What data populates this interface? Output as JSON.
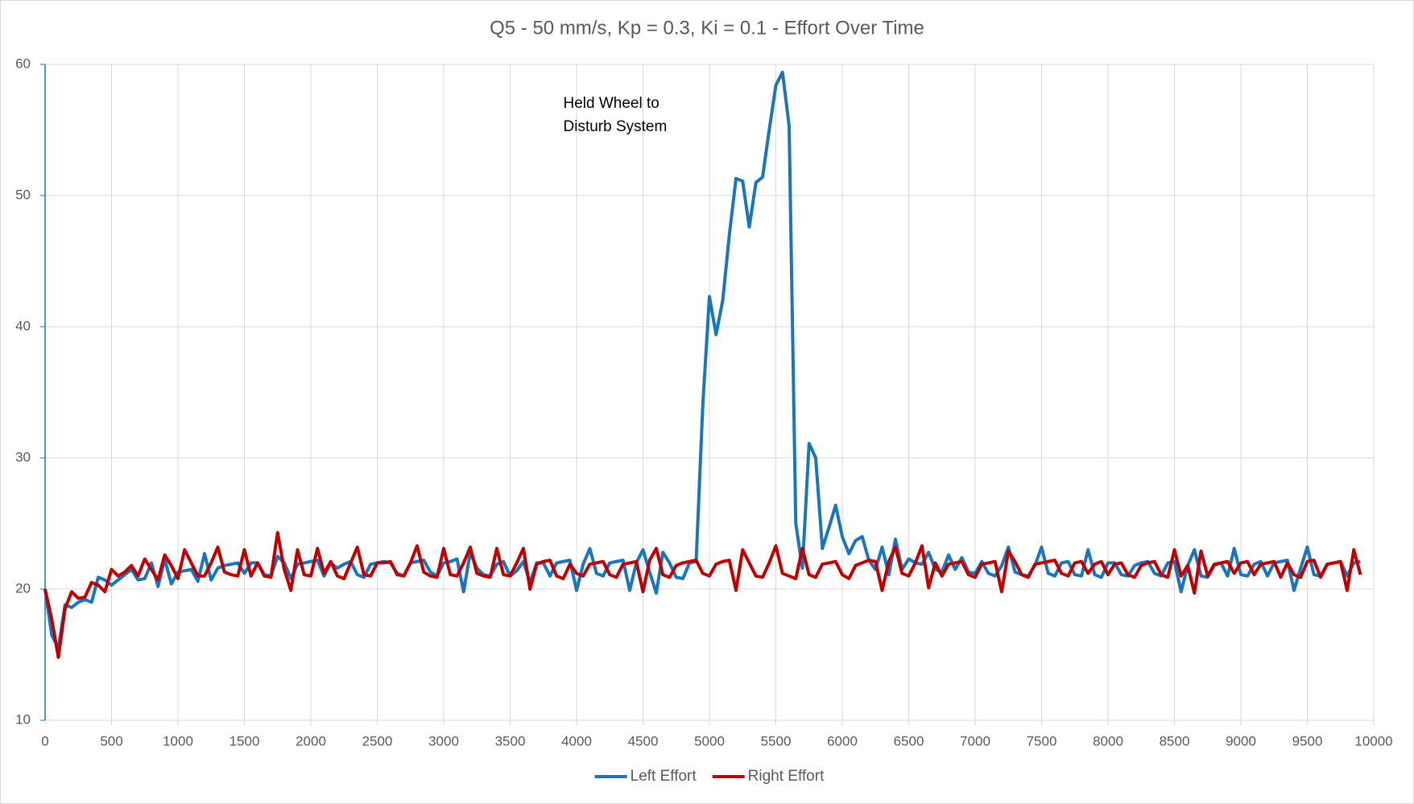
{
  "chart_data": {
    "type": "line",
    "title": "Q5 - 50 mm/s, Kp = 0.3, Ki = 0.1 - Effort Over Time",
    "annotation": [
      "Held Wheel to",
      "Disturb System"
    ],
    "annotation_at": [
      3900,
      57
    ],
    "x": [
      0,
      50,
      100,
      150,
      200,
      250,
      300,
      350,
      400,
      450,
      500,
      550,
      600,
      650,
      700,
      750,
      800,
      850,
      900,
      950,
      1000,
      1050,
      1100,
      1150,
      1200,
      1250,
      1300,
      1350,
      1400,
      1450,
      1500,
      1550,
      1600,
      1650,
      1700,
      1750,
      1800,
      1850,
      1900,
      1950,
      2000,
      2050,
      2100,
      2150,
      2200,
      2250,
      2300,
      2350,
      2400,
      2450,
      2500,
      2550,
      2600,
      2650,
      2700,
      2750,
      2800,
      2850,
      2900,
      2950,
      3000,
      3050,
      3100,
      3150,
      3200,
      3250,
      3300,
      3350,
      3400,
      3450,
      3500,
      3550,
      3600,
      3650,
      3700,
      3750,
      3800,
      3850,
      3900,
      3950,
      4000,
      4050,
      4100,
      4150,
      4200,
      4250,
      4300,
      4350,
      4400,
      4450,
      4500,
      4550,
      4600,
      4650,
      4700,
      4750,
      4800,
      4850,
      4900,
      4950,
      5000,
      5050,
      5100,
      5150,
      5200,
      5250,
      5300,
      5350,
      5400,
      5450,
      5500,
      5550,
      5600,
      5650,
      5700,
      5750,
      5800,
      5850,
      5900,
      5950,
      6000,
      6050,
      6100,
      6150,
      6200,
      6250,
      6300,
      6350,
      6400,
      6450,
      6500,
      6550,
      6600,
      6650,
      6700,
      6750,
      6800,
      6850,
      6900,
      6950,
      7000,
      7050,
      7100,
      7150,
      7200,
      7250,
      7300,
      7350,
      7400,
      7450,
      7500,
      7550,
      7600,
      7650,
      7700,
      7750,
      7800,
      7850,
      7900,
      7950,
      8000,
      8050,
      8100,
      8150,
      8200,
      8250,
      8300,
      8350,
      8400,
      8450,
      8500,
      8550,
      8600,
      8650,
      8700,
      8750,
      8800,
      8850,
      8900,
      8950,
      9000,
      9050,
      9100,
      9150,
      9200,
      9250,
      9300,
      9350,
      9400,
      9450,
      9500,
      9550,
      9600,
      9650,
      9700,
      9750,
      9800,
      9850,
      9900
    ],
    "series": [
      {
        "name": "Left Effort",
        "color": "#1b75bc",
        "values": [
          20,
          16.5,
          15.5,
          18.8,
          18.6,
          19,
          19.2,
          19,
          20.9,
          20.7,
          20.3,
          20.7,
          21.1,
          21.5,
          20.7,
          20.8,
          22,
          20.2,
          22.3,
          20.4,
          21.3,
          21.4,
          21.5,
          20.6,
          22.7,
          20.7,
          21.6,
          21.8,
          21.9,
          22,
          21.2,
          22,
          22,
          21.1,
          21,
          22.5,
          22,
          20.8,
          21.9,
          22,
          22.1,
          22.2,
          21,
          22,
          21.6,
          21.9,
          22.1,
          21.1,
          20.9,
          21.9,
          22,
          22.1,
          22,
          21.2,
          21,
          22,
          22.1,
          22.2,
          21.3,
          21,
          22,
          22.1,
          22.3,
          19.8,
          22.8,
          21.6,
          21.1,
          21,
          21.9,
          22.1,
          21,
          21.4,
          22.1,
          20.5,
          22,
          22,
          21,
          22,
          22.1,
          22.2,
          19.9,
          21.9,
          23.1,
          21.2,
          21,
          22,
          22.1,
          22.2,
          19.9,
          22,
          23,
          21.3,
          19.7,
          22.8,
          22,
          20.9,
          20.8,
          22,
          22.1,
          34,
          42.3,
          39.4,
          42,
          47,
          51.3,
          51.1,
          47.6,
          51,
          51.4,
          55,
          58.4,
          59.4,
          55.3,
          25,
          21.6,
          31.1,
          30,
          23.1,
          24.7,
          26.4,
          24,
          22.7,
          23.7,
          24,
          22.2,
          21.5,
          23.2,
          21.1,
          23.8,
          21.5,
          22.3,
          22,
          21.9,
          22.8,
          21.5,
          21.3,
          22.6,
          21.5,
          22.4,
          21.3,
          21.2,
          22.1,
          21.2,
          21,
          21.8,
          23.2,
          21.3,
          21.1,
          21,
          21.8,
          23.2,
          21.2,
          21,
          22,
          22.1,
          21.1,
          21,
          23,
          21.1,
          20.9,
          22,
          22,
          21.1,
          21,
          21.8,
          22,
          22.1,
          21.2,
          21,
          22,
          22.1,
          19.8,
          21.8,
          23,
          21,
          20.9,
          21.8,
          22,
          21,
          23.1,
          21.1,
          21,
          21.9,
          22.1,
          21,
          22,
          22.1,
          22.2,
          19.9,
          21.6,
          23.2,
          21.1,
          21,
          21.9,
          22,
          22.1,
          21,
          22,
          22.1
        ]
      },
      {
        "name": "Right Effort",
        "color": "#c00000",
        "values": [
          20,
          17.7,
          14.8,
          18.5,
          19.8,
          19.3,
          19.4,
          20.5,
          20.3,
          19.8,
          21.5,
          21,
          21.3,
          21.8,
          21,
          22.3,
          21.5,
          20.7,
          22.6,
          21.8,
          20.8,
          23,
          22,
          21,
          21,
          22,
          23.2,
          21.3,
          21.1,
          21,
          23,
          21,
          22,
          21,
          20.9,
          24.3,
          21.5,
          19.9,
          23,
          21.1,
          21,
          23.1,
          21.2,
          22.1,
          21,
          20.8,
          22,
          23.2,
          21.1,
          21,
          22,
          22,
          22.1,
          21.1,
          21,
          22,
          23.3,
          21.3,
          21,
          20.9,
          23.1,
          21.1,
          21,
          22,
          23.2,
          21.2,
          21,
          20.9,
          23.1,
          21.1,
          21,
          22,
          23.1,
          20,
          21.9,
          22.1,
          22.2,
          21,
          20.8,
          21.9,
          21.2,
          21,
          21.9,
          22,
          22.1,
          21.1,
          20.9,
          21.9,
          22,
          22.1,
          19.8,
          22.2,
          23.1,
          21.1,
          20.9,
          21.8,
          22,
          22.1,
          22.2,
          21.2,
          21,
          21.9,
          22.1,
          22.2,
          19.9,
          23,
          22,
          21,
          20.9,
          22,
          23.3,
          21.2,
          21,
          20.8,
          23.1,
          21.1,
          20.9,
          21.9,
          22,
          22.1,
          21.1,
          20.8,
          21.8,
          22,
          22.2,
          22.1,
          19.9,
          22.1,
          23.2,
          21.2,
          21,
          22,
          23.3,
          20.1,
          22,
          21,
          21.9,
          22,
          22.1,
          21.1,
          20.9,
          21.9,
          22,
          22.1,
          19.8,
          22.9,
          22.1,
          21.1,
          20.9,
          21.9,
          22,
          22.1,
          22.2,
          21.2,
          21,
          22,
          22.1,
          21.2,
          21.9,
          22.1,
          21.1,
          21.9,
          22,
          21.1,
          20.9,
          21.8,
          22,
          22.1,
          21.1,
          20.9,
          23,
          21,
          21.8,
          19.7,
          22.9,
          21,
          21.9,
          22,
          22.1,
          21.2,
          22,
          22.1,
          21.1,
          21.9,
          22,
          22.1,
          20.9,
          22,
          21.1,
          20.9,
          22.1,
          22.2,
          20.9,
          21.9,
          22,
          22.1,
          19.9,
          23,
          21.1
        ]
      }
    ],
    "xlim": [
      0,
      10000
    ],
    "xticks": [
      0,
      500,
      1000,
      1500,
      2000,
      2500,
      3000,
      3500,
      4000,
      4500,
      5000,
      5500,
      6000,
      6500,
      7000,
      7500,
      8000,
      8500,
      9000,
      9500,
      10000
    ],
    "ylim": [
      10,
      60
    ],
    "yticks": [
      10,
      20,
      30,
      40,
      50,
      60
    ],
    "grid": true,
    "legend": "bottom"
  }
}
